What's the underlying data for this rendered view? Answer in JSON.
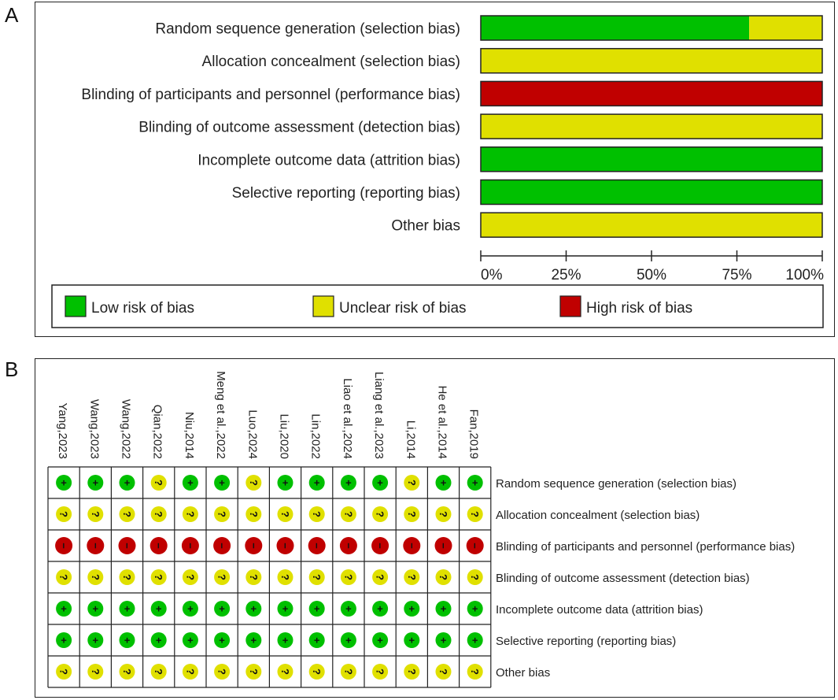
{
  "panel_a": {
    "letter": "A"
  },
  "panel_b": {
    "letter": "B"
  },
  "colors": {
    "low": "#00c000",
    "unclear": "#e0e000",
    "high": "#c00000"
  },
  "chart_data": [
    {
      "type": "bar",
      "orientation": "horizontal-stacked-percent",
      "categories": [
        "Random sequence generation (selection bias)",
        "Allocation concealment (selection bias)",
        "Blinding of participants and personnel (performance bias)",
        "Blinding of outcome assessment (detection bias)",
        "Incomplete outcome data (attrition bias)",
        "Selective reporting (reporting bias)",
        "Other bias"
      ],
      "series": [
        {
          "name": "Low risk of bias",
          "key": "low",
          "values": [
            78.6,
            0,
            0,
            0,
            100,
            100,
            0
          ]
        },
        {
          "name": "Unclear risk of bias",
          "key": "unclear",
          "values": [
            21.4,
            100,
            0,
            100,
            0,
            0,
            100
          ]
        },
        {
          "name": "High risk of bias",
          "key": "high",
          "values": [
            0,
            0,
            100,
            0,
            0,
            0,
            0
          ]
        }
      ],
      "xticks": [
        "0%",
        "25%",
        "50%",
        "75%",
        "100%"
      ],
      "xlim": [
        0,
        100
      ],
      "legend_position": "bottom"
    },
    {
      "type": "table",
      "studies": [
        "Yang,2023",
        "Wang,2023",
        "Wang,2022",
        "Qian,2022",
        "Niu,2014",
        "Meng et al.,2022",
        "Luo,2024",
        "Liu,2020",
        "Lin,2022",
        "Liao et al.,2024",
        "Liang et al.,2023",
        "Li,2014",
        "He et al.,2014",
        "Fan,2019"
      ],
      "domains": [
        "Random sequence generation (selection bias)",
        "Allocation concealment (selection bias)",
        "Blinding of participants and personnel (performance bias)",
        "Blinding of outcome assessment (detection bias)",
        "Incomplete outcome data (attrition bias)",
        "Selective reporting (reporting bias)",
        "Other bias"
      ],
      "judgements": [
        [
          "low",
          "low",
          "low",
          "unclear",
          "low",
          "low",
          "unclear",
          "low",
          "low",
          "low",
          "low",
          "unclear",
          "low",
          "low"
        ],
        [
          "unclear",
          "unclear",
          "unclear",
          "unclear",
          "unclear",
          "unclear",
          "unclear",
          "unclear",
          "unclear",
          "unclear",
          "unclear",
          "unclear",
          "unclear",
          "unclear"
        ],
        [
          "high",
          "high",
          "high",
          "high",
          "high",
          "high",
          "high",
          "high",
          "high",
          "high",
          "high",
          "high",
          "high",
          "high"
        ],
        [
          "unclear",
          "unclear",
          "unclear",
          "unclear",
          "unclear",
          "unclear",
          "unclear",
          "unclear",
          "unclear",
          "unclear",
          "unclear",
          "unclear",
          "unclear",
          "unclear"
        ],
        [
          "low",
          "low",
          "low",
          "low",
          "low",
          "low",
          "low",
          "low",
          "low",
          "low",
          "low",
          "low",
          "low",
          "low"
        ],
        [
          "low",
          "low",
          "low",
          "low",
          "low",
          "low",
          "low",
          "low",
          "low",
          "low",
          "low",
          "low",
          "low",
          "low"
        ],
        [
          "unclear",
          "unclear",
          "unclear",
          "unclear",
          "unclear",
          "unclear",
          "unclear",
          "unclear",
          "unclear",
          "unclear",
          "unclear",
          "unclear",
          "unclear",
          "unclear"
        ]
      ],
      "symbols": {
        "low": "+",
        "unclear": "?",
        "high": "−"
      }
    }
  ]
}
